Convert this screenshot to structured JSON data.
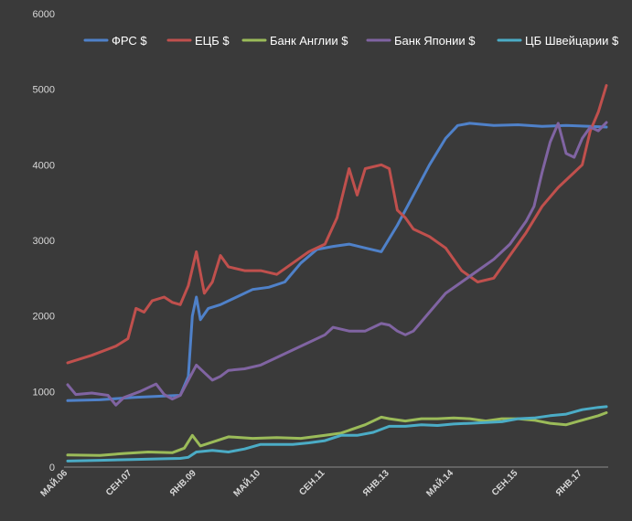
{
  "chart_data": {
    "type": "line",
    "ylim": [
      0,
      6000
    ],
    "yticks": [
      "0",
      "1000",
      "2000",
      "3000",
      "4000",
      "5000",
      "6000"
    ],
    "x_ticks": [
      "МАЙ.06",
      "СЕН.07",
      "ЯНВ.09",
      "МАЙ.10",
      "СЕН.11",
      "ЯНВ.13",
      "МАЙ.14",
      "СЕН.15",
      "ЯНВ.17"
    ],
    "x_tick_index": [
      0,
      16,
      32,
      48,
      64,
      80,
      96,
      112,
      128
    ],
    "x_index_range": [
      0,
      134
    ],
    "grid": false,
    "legend": "top",
    "series": [
      {
        "name": "ФРС  $",
        "color": "#4f81c9",
        "points": [
          [
            0,
            880
          ],
          [
            8,
            890
          ],
          [
            16,
            920
          ],
          [
            24,
            940
          ],
          [
            28,
            950
          ],
          [
            30,
            1200
          ],
          [
            31,
            2000
          ],
          [
            32,
            2250
          ],
          [
            33,
            1950
          ],
          [
            35,
            2100
          ],
          [
            38,
            2150
          ],
          [
            42,
            2250
          ],
          [
            46,
            2350
          ],
          [
            50,
            2380
          ],
          [
            54,
            2450
          ],
          [
            58,
            2700
          ],
          [
            62,
            2880
          ],
          [
            66,
            2920
          ],
          [
            70,
            2950
          ],
          [
            74,
            2900
          ],
          [
            78,
            2850
          ],
          [
            82,
            3200
          ],
          [
            86,
            3600
          ],
          [
            90,
            4000
          ],
          [
            94,
            4350
          ],
          [
            97,
            4520
          ],
          [
            100,
            4550
          ],
          [
            106,
            4520
          ],
          [
            112,
            4530
          ],
          [
            118,
            4510
          ],
          [
            124,
            4520
          ],
          [
            130,
            4510
          ],
          [
            134,
            4500
          ]
        ]
      },
      {
        "name": "ЕЦБ $",
        "color": "#c0504d",
        "points": [
          [
            0,
            1380
          ],
          [
            6,
            1480
          ],
          [
            12,
            1600
          ],
          [
            15,
            1700
          ],
          [
            17,
            2100
          ],
          [
            19,
            2050
          ],
          [
            21,
            2200
          ],
          [
            24,
            2250
          ],
          [
            26,
            2180
          ],
          [
            28,
            2150
          ],
          [
            30,
            2400
          ],
          [
            32,
            2850
          ],
          [
            34,
            2300
          ],
          [
            36,
            2450
          ],
          [
            38,
            2800
          ],
          [
            40,
            2650
          ],
          [
            44,
            2600
          ],
          [
            48,
            2600
          ],
          [
            52,
            2550
          ],
          [
            56,
            2700
          ],
          [
            60,
            2850
          ],
          [
            64,
            2950
          ],
          [
            67,
            3300
          ],
          [
            70,
            3950
          ],
          [
            72,
            3600
          ],
          [
            74,
            3950
          ],
          [
            78,
            4000
          ],
          [
            80,
            3950
          ],
          [
            82,
            3400
          ],
          [
            84,
            3300
          ],
          [
            86,
            3150
          ],
          [
            90,
            3050
          ],
          [
            94,
            2900
          ],
          [
            98,
            2600
          ],
          [
            102,
            2450
          ],
          [
            106,
            2500
          ],
          [
            110,
            2800
          ],
          [
            114,
            3100
          ],
          [
            118,
            3450
          ],
          [
            122,
            3700
          ],
          [
            126,
            3900
          ],
          [
            128,
            4000
          ],
          [
            130,
            4450
          ],
          [
            132,
            4700
          ],
          [
            134,
            5050
          ]
        ]
      },
      {
        "name": "Банк Англии $",
        "color": "#9bbb59",
        "points": [
          [
            0,
            160
          ],
          [
            8,
            155
          ],
          [
            14,
            180
          ],
          [
            20,
            200
          ],
          [
            26,
            190
          ],
          [
            29,
            250
          ],
          [
            31,
            420
          ],
          [
            33,
            280
          ],
          [
            36,
            330
          ],
          [
            40,
            400
          ],
          [
            46,
            380
          ],
          [
            52,
            390
          ],
          [
            58,
            380
          ],
          [
            64,
            420
          ],
          [
            68,
            450
          ],
          [
            74,
            560
          ],
          [
            78,
            660
          ],
          [
            80,
            640
          ],
          [
            84,
            610
          ],
          [
            88,
            640
          ],
          [
            92,
            640
          ],
          [
            96,
            650
          ],
          [
            100,
            640
          ],
          [
            104,
            610
          ],
          [
            108,
            640
          ],
          [
            112,
            640
          ],
          [
            116,
            620
          ],
          [
            120,
            580
          ],
          [
            124,
            560
          ],
          [
            128,
            620
          ],
          [
            132,
            680
          ],
          [
            134,
            720
          ]
        ]
      },
      {
        "name": "Банк Японии $",
        "color": "#8064a2",
        "points": [
          [
            0,
            1090
          ],
          [
            2,
            960
          ],
          [
            6,
            980
          ],
          [
            10,
            950
          ],
          [
            12,
            820
          ],
          [
            14,
            920
          ],
          [
            18,
            1000
          ],
          [
            20,
            1050
          ],
          [
            22,
            1100
          ],
          [
            24,
            960
          ],
          [
            26,
            900
          ],
          [
            28,
            950
          ],
          [
            30,
            1150
          ],
          [
            32,
            1350
          ],
          [
            34,
            1250
          ],
          [
            36,
            1150
          ],
          [
            38,
            1200
          ],
          [
            40,
            1280
          ],
          [
            44,
            1300
          ],
          [
            48,
            1350
          ],
          [
            52,
            1450
          ],
          [
            56,
            1550
          ],
          [
            60,
            1650
          ],
          [
            64,
            1750
          ],
          [
            66,
            1850
          ],
          [
            70,
            1800
          ],
          [
            74,
            1800
          ],
          [
            78,
            1900
          ],
          [
            80,
            1880
          ],
          [
            82,
            1800
          ],
          [
            84,
            1750
          ],
          [
            86,
            1800
          ],
          [
            90,
            2050
          ],
          [
            94,
            2300
          ],
          [
            98,
            2450
          ],
          [
            102,
            2600
          ],
          [
            106,
            2750
          ],
          [
            110,
            2950
          ],
          [
            114,
            3250
          ],
          [
            116,
            3450
          ],
          [
            118,
            3900
          ],
          [
            120,
            4300
          ],
          [
            122,
            4550
          ],
          [
            124,
            4150
          ],
          [
            126,
            4100
          ],
          [
            128,
            4350
          ],
          [
            130,
            4500
          ],
          [
            132,
            4450
          ],
          [
            134,
            4560
          ]
        ]
      },
      {
        "name": "ЦБ Швейцарии $",
        "color": "#4bacc6",
        "points": [
          [
            0,
            80
          ],
          [
            8,
            90
          ],
          [
            16,
            100
          ],
          [
            24,
            110
          ],
          [
            28,
            115
          ],
          [
            30,
            130
          ],
          [
            32,
            200
          ],
          [
            36,
            220
          ],
          [
            40,
            200
          ],
          [
            44,
            240
          ],
          [
            48,
            300
          ],
          [
            52,
            300
          ],
          [
            56,
            300
          ],
          [
            60,
            320
          ],
          [
            64,
            350
          ],
          [
            68,
            420
          ],
          [
            72,
            420
          ],
          [
            76,
            460
          ],
          [
            80,
            540
          ],
          [
            84,
            540
          ],
          [
            88,
            560
          ],
          [
            92,
            550
          ],
          [
            96,
            570
          ],
          [
            100,
            580
          ],
          [
            104,
            590
          ],
          [
            108,
            600
          ],
          [
            112,
            640
          ],
          [
            116,
            650
          ],
          [
            120,
            680
          ],
          [
            124,
            700
          ],
          [
            128,
            760
          ],
          [
            132,
            790
          ],
          [
            134,
            800
          ]
        ]
      }
    ]
  }
}
